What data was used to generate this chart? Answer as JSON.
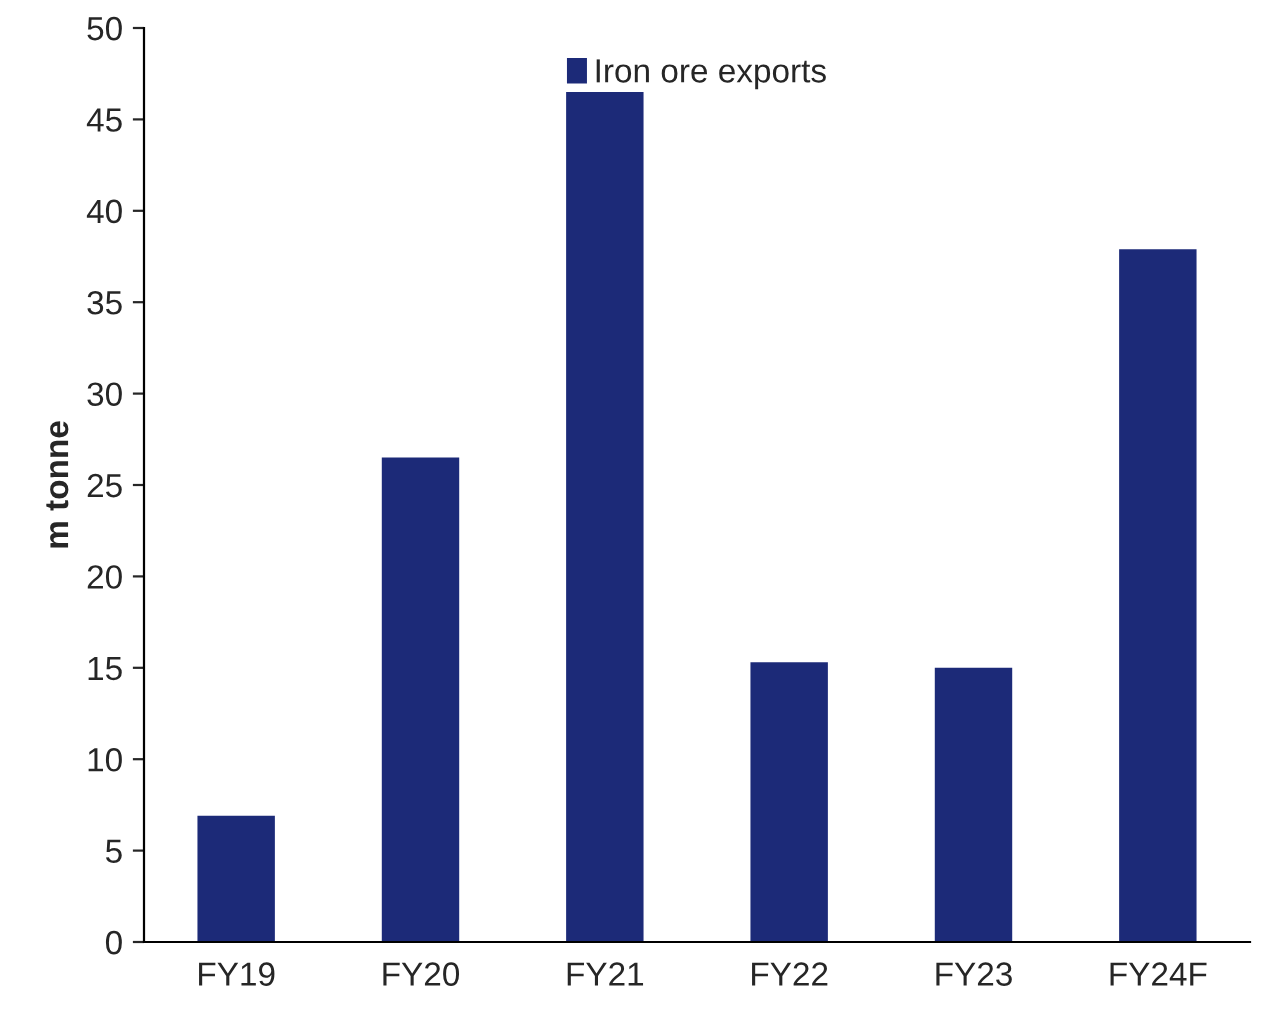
{
  "chart_data": {
    "type": "bar",
    "ylabel": "m tonne",
    "categories": [
      "FY19",
      "FY20",
      "FY21",
      "FY22",
      "FY23",
      "FY24F"
    ],
    "series": [
      {
        "name": "Iron ore exports",
        "color": "#1c2a78",
        "values": [
          6.9,
          26.5,
          46.5,
          15.3,
          15.0,
          37.9
        ]
      }
    ],
    "ylim": [
      0,
      50
    ],
    "yticks": [
      0,
      5,
      10,
      15,
      20,
      25,
      30,
      35,
      40,
      45,
      50
    ],
    "grid": false,
    "legend": "top"
  }
}
